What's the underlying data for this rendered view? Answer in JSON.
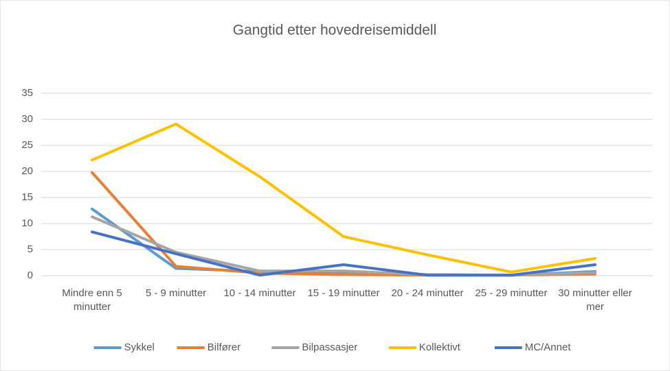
{
  "chart_data": {
    "type": "line",
    "title": "Gangtid etter hovedreisemiddell",
    "categories": [
      "Mindre enn 5 minutter",
      "5 - 9 minutter",
      "10 - 14 minutter",
      "15 - 19 minutter",
      "20 - 24 minutter",
      "25 - 29 minutter",
      "30 minutter eller mer"
    ],
    "series": [
      {
        "name": "Sykkel",
        "color": "#5b9bd5",
        "values": [
          12.8,
          1.4,
          0.8,
          0.5,
          0.2,
          0.1,
          0.8
        ]
      },
      {
        "name": "Bilfører",
        "color": "#ed7d31",
        "values": [
          19.8,
          1.8,
          0.5,
          0.2,
          0.1,
          0.1,
          0.3
        ]
      },
      {
        "name": "Bilpassasjer",
        "color": "#a5a5a5",
        "values": [
          11.3,
          4.5,
          0.9,
          0.9,
          0.2,
          0.1,
          0.6
        ]
      },
      {
        "name": "Kollektivt",
        "color": "#ffc000",
        "values": [
          22.2,
          29.1,
          19,
          7.5,
          4,
          0.7,
          3.3
        ]
      },
      {
        "name": "MC/Annet",
        "color": "#4472c4",
        "values": [
          8.4,
          4.2,
          0.1,
          2.1,
          0.1,
          0.1,
          2.1
        ]
      }
    ],
    "ylim": [
      0,
      35
    ],
    "yticks": [
      0,
      5,
      10,
      15,
      20,
      25,
      30,
      35
    ],
    "grid": true,
    "legend": "bottom"
  }
}
